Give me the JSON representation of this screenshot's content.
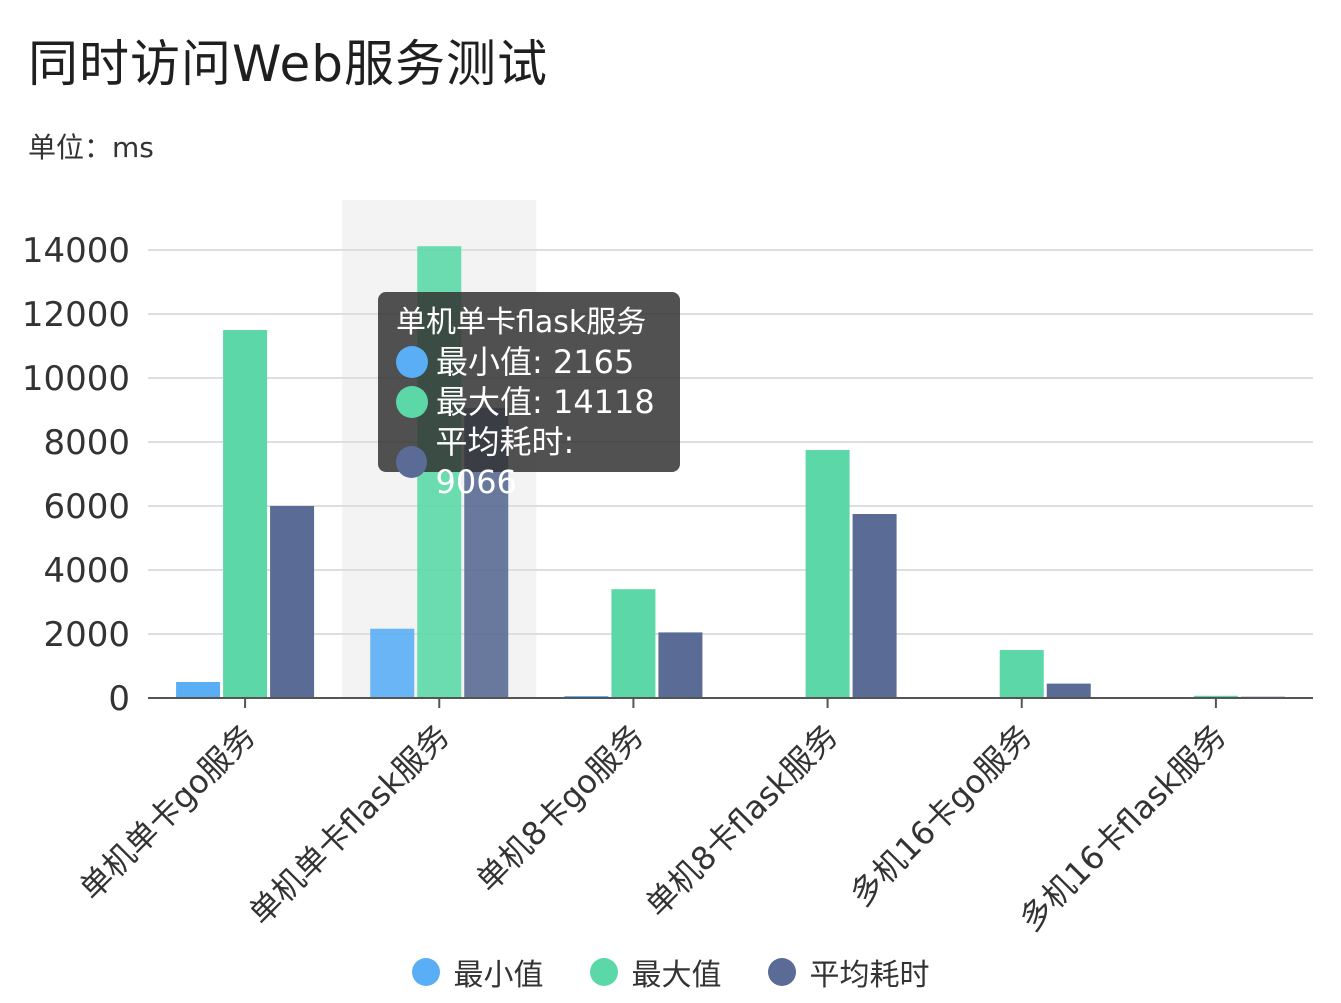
{
  "title": "同时访问Web服务测试",
  "subtitle": "单位：ms",
  "chart_data": {
    "type": "bar",
    "categories": [
      "单机单卡go服务",
      "单机单卡flask服务",
      "单机8卡go服务",
      "单机8卡flask服务",
      "多机16卡go服务",
      "多机16卡flask服务"
    ],
    "series": [
      {
        "name": "最小值",
        "values": [
          500,
          2165,
          60,
          30,
          25,
          15
        ],
        "color": "#5aaef5"
      },
      {
        "name": "最大值",
        "values": [
          11500,
          14118,
          3400,
          7750,
          1500,
          70
        ],
        "color": "#5cd8a8"
      },
      {
        "name": "平均耗时",
        "values": [
          6000,
          9066,
          2050,
          5750,
          450,
          40
        ],
        "color": "#5a6b95"
      }
    ],
    "y_ticks": [
      "0",
      "2000",
      "4000",
      "6000",
      "8000",
      "10000",
      "12000",
      "14000"
    ],
    "ylim": [
      0,
      14000
    ],
    "grid": true,
    "legend": "bottom-center",
    "highlighted_category": "单机单卡flask服务"
  },
  "tooltip": {
    "title": "单机单卡flask服务",
    "rows": [
      {
        "label": "最小值: 2165",
        "color": "#5aaef5"
      },
      {
        "label": "最大值: 14118",
        "color": "#5cd8a8"
      },
      {
        "label": "平均耗时: 9066",
        "color": "#5a6b95"
      }
    ]
  },
  "legend": {
    "items": [
      {
        "label": "最小值",
        "color": "#5aaef5"
      },
      {
        "label": "最大值",
        "color": "#5cd8a8"
      },
      {
        "label": "平均耗时",
        "color": "#5a6b95"
      }
    ]
  }
}
